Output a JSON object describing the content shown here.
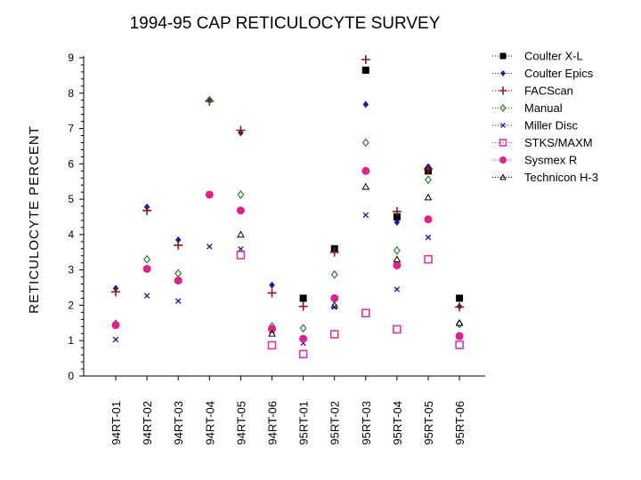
{
  "chart_data": {
    "type": "scatter",
    "title": "1994-95 CAP RETICULOCYTE SURVEY",
    "xlabel": "",
    "ylabel": "RETICULOCYTE PERCENT",
    "ylim": [
      0,
      9
    ],
    "yticks": [
      "0",
      "1",
      "2",
      "3",
      "4",
      "5",
      "6",
      "7",
      "8",
      "9"
    ],
    "categories": [
      "94RT-01",
      "94RT-02",
      "94RT-03",
      "94RT-04",
      "94RT-05",
      "94RT-06",
      "95RT-01",
      "95RT-02",
      "95RT-03",
      "95RT-04",
      "95RT-05",
      "95RT-06"
    ],
    "legend_position": "right",
    "series": [
      {
        "name": "Coulter X-L",
        "marker": "filled-square",
        "color": "#000000",
        "values": [
          null,
          null,
          null,
          null,
          null,
          null,
          2.2,
          3.6,
          8.65,
          4.5,
          5.8,
          2.2
        ]
      },
      {
        "name": "Coulter Epics",
        "marker": "filled-diamond",
        "color": "#1a1a9e",
        "values": [
          2.48,
          4.78,
          3.85,
          7.82,
          6.88,
          2.57,
          null,
          null,
          7.68,
          4.35,
          5.92,
          1.97
        ]
      },
      {
        "name": "FACScan",
        "marker": "plus",
        "color": "#8b1a1a",
        "values": [
          2.38,
          4.68,
          3.7,
          7.77,
          6.95,
          2.35,
          1.97,
          3.5,
          8.95,
          4.65,
          5.85,
          1.95
        ]
      },
      {
        "name": "Manual",
        "marker": "open-diamond",
        "color": "#2e7d32",
        "values": [
          1.48,
          3.3,
          2.9,
          7.8,
          5.13,
          1.4,
          1.35,
          2.87,
          6.6,
          3.55,
          5.55,
          1.47
        ]
      },
      {
        "name": "Miller Disc",
        "marker": "x",
        "color": "#1a1a8c",
        "values": [
          1.03,
          2.27,
          2.12,
          3.66,
          3.59,
          1.27,
          0.93,
          1.95,
          4.55,
          2.45,
          3.92,
          1.1
        ]
      },
      {
        "name": "STKS/MAXM",
        "marker": "open-square",
        "color": "#d63aa8",
        "values": [
          null,
          null,
          null,
          null,
          3.42,
          0.87,
          0.62,
          1.18,
          1.78,
          1.32,
          3.3,
          0.88
        ]
      },
      {
        "name": "Sysmex R",
        "marker": "filled-circle",
        "color": "#e0218a",
        "values": [
          1.44,
          3.03,
          2.7,
          5.13,
          4.68,
          1.33,
          1.05,
          2.2,
          5.8,
          3.13,
          4.43,
          1.13
        ]
      },
      {
        "name": "Technicon H-3",
        "marker": "open-triangle",
        "color": "#000000",
        "values": [
          null,
          null,
          null,
          null,
          4.0,
          1.2,
          null,
          2.0,
          5.35,
          3.3,
          5.05,
          1.5
        ]
      }
    ]
  }
}
